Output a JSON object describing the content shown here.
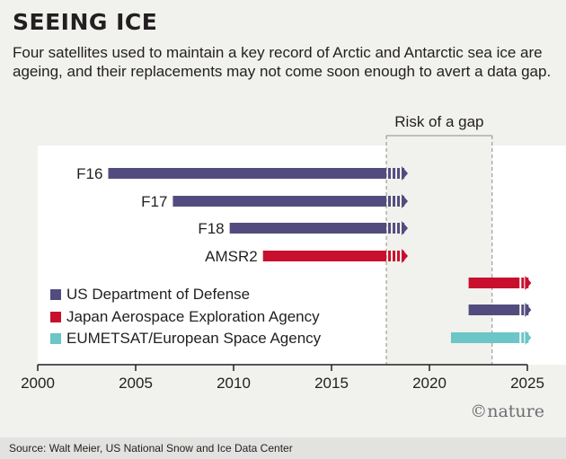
{
  "header": {
    "title": "SEEING ICE",
    "subtitle": "Four satellites used to maintain a key record of Arctic and Antarctic sea ice are ageing, and their replacements may not come soon enough to avert a data gap."
  },
  "source": "Source: Walt Meier, US National Snow and Ice Data Center",
  "logo": "©nature",
  "colors": {
    "US Department of Defense": "#524c7e",
    "Japan Aerospace Exploration Agency": "#c8102e",
    "EUMETSAT/European Space Agency": "#6cc5c6"
  },
  "chart_data": {
    "type": "timeline",
    "xlim": [
      2000,
      2025
    ],
    "ticks": [
      "2000",
      "2005",
      "2010",
      "2015",
      "2020",
      "2025"
    ],
    "gap_label": "Risk of a gap",
    "gap_range": [
      2017.8,
      2023.2
    ],
    "satellites": [
      {
        "name": "F16",
        "start": 2003.6,
        "end": 2017.8,
        "continues_to": 2018.9,
        "agency": "US Department of Defense"
      },
      {
        "name": "F17",
        "start": 2006.9,
        "end": 2017.8,
        "continues_to": 2018.9,
        "agency": "US Department of Defense"
      },
      {
        "name": "F18",
        "start": 2009.8,
        "end": 2017.8,
        "continues_to": 2018.9,
        "agency": "US Department of Defense"
      },
      {
        "name": "AMSR2",
        "start": 2011.5,
        "end": 2017.8,
        "continues_to": 2018.9,
        "agency": "Japan Aerospace Exploration Agency"
      }
    ],
    "replacements": [
      {
        "start": 2022.0,
        "end": 2025.2,
        "agency": "Japan Aerospace Exploration Agency"
      },
      {
        "start": 2022.0,
        "end": 2025.2,
        "agency": "US Department of Defense"
      },
      {
        "start": 2021.1,
        "end": 2025.2,
        "agency": "EUMETSAT/European Space Agency"
      }
    ],
    "legend": [
      "US Department of Defense",
      "Japan Aerospace Exploration Agency",
      "EUMETSAT/European Space Agency"
    ]
  }
}
